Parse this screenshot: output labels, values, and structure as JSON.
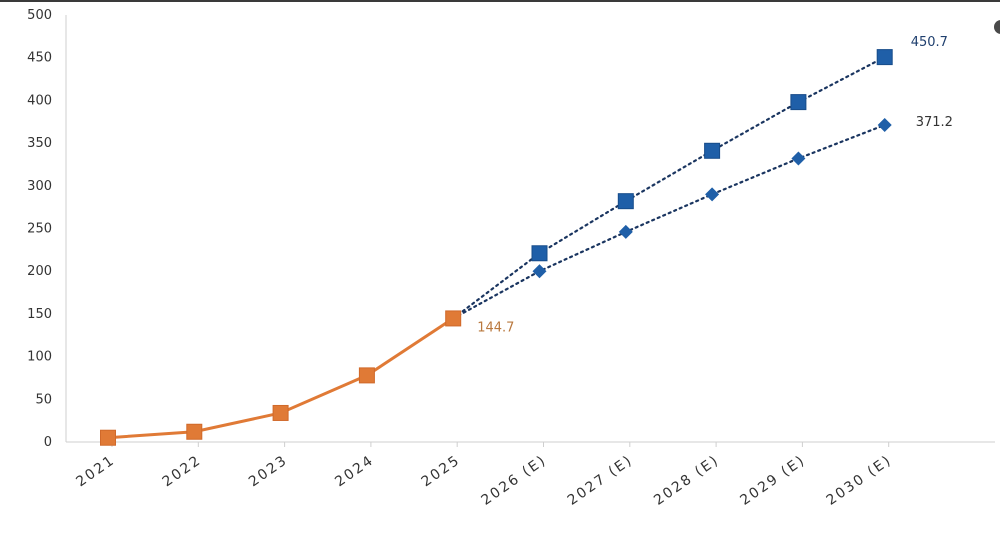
{
  "chart_data": {
    "type": "line",
    "title": "",
    "xlabel": "",
    "ylabel": "",
    "categories": [
      "2021",
      "2022",
      "2023",
      "2024",
      "2025",
      "2026 (E)",
      "2027 (E)",
      "2028 (E)",
      "2029 (E)",
      "2030 (E)"
    ],
    "ylim": [
      0,
      500
    ],
    "yticks": [
      0,
      50,
      100,
      150,
      200,
      250,
      300,
      350,
      400,
      450,
      500
    ],
    "grid": false,
    "legend": "none",
    "series": [
      {
        "color": "#e07a36",
        "line_style": "solid",
        "marker": "square",
        "values": [
          5,
          12,
          34,
          78,
          144.7,
          null,
          null,
          null,
          null,
          null
        ]
      },
      {
        "color": "#1f5fa8",
        "line_style": "dotted",
        "marker": "square",
        "values": [
          null,
          null,
          null,
          null,
          144.7,
          221,
          282,
          341,
          398,
          450.7
        ]
      },
      {
        "color": "#1f5fa8",
        "line_style": "dotted",
        "marker": "diamond",
        "values": [
          null,
          null,
          null,
          null,
          144.7,
          200,
          246,
          290,
          332,
          371.2
        ]
      }
    ],
    "data_labels": [
      {
        "text": "144.7",
        "series": 0,
        "index": 4,
        "color": "#b9783e"
      },
      {
        "text": "450.7",
        "series": 1,
        "index": 9,
        "color": "#1f3f6e"
      },
      {
        "text": "371.2",
        "series": 2,
        "index": 9,
        "color": "#333333"
      }
    ]
  }
}
